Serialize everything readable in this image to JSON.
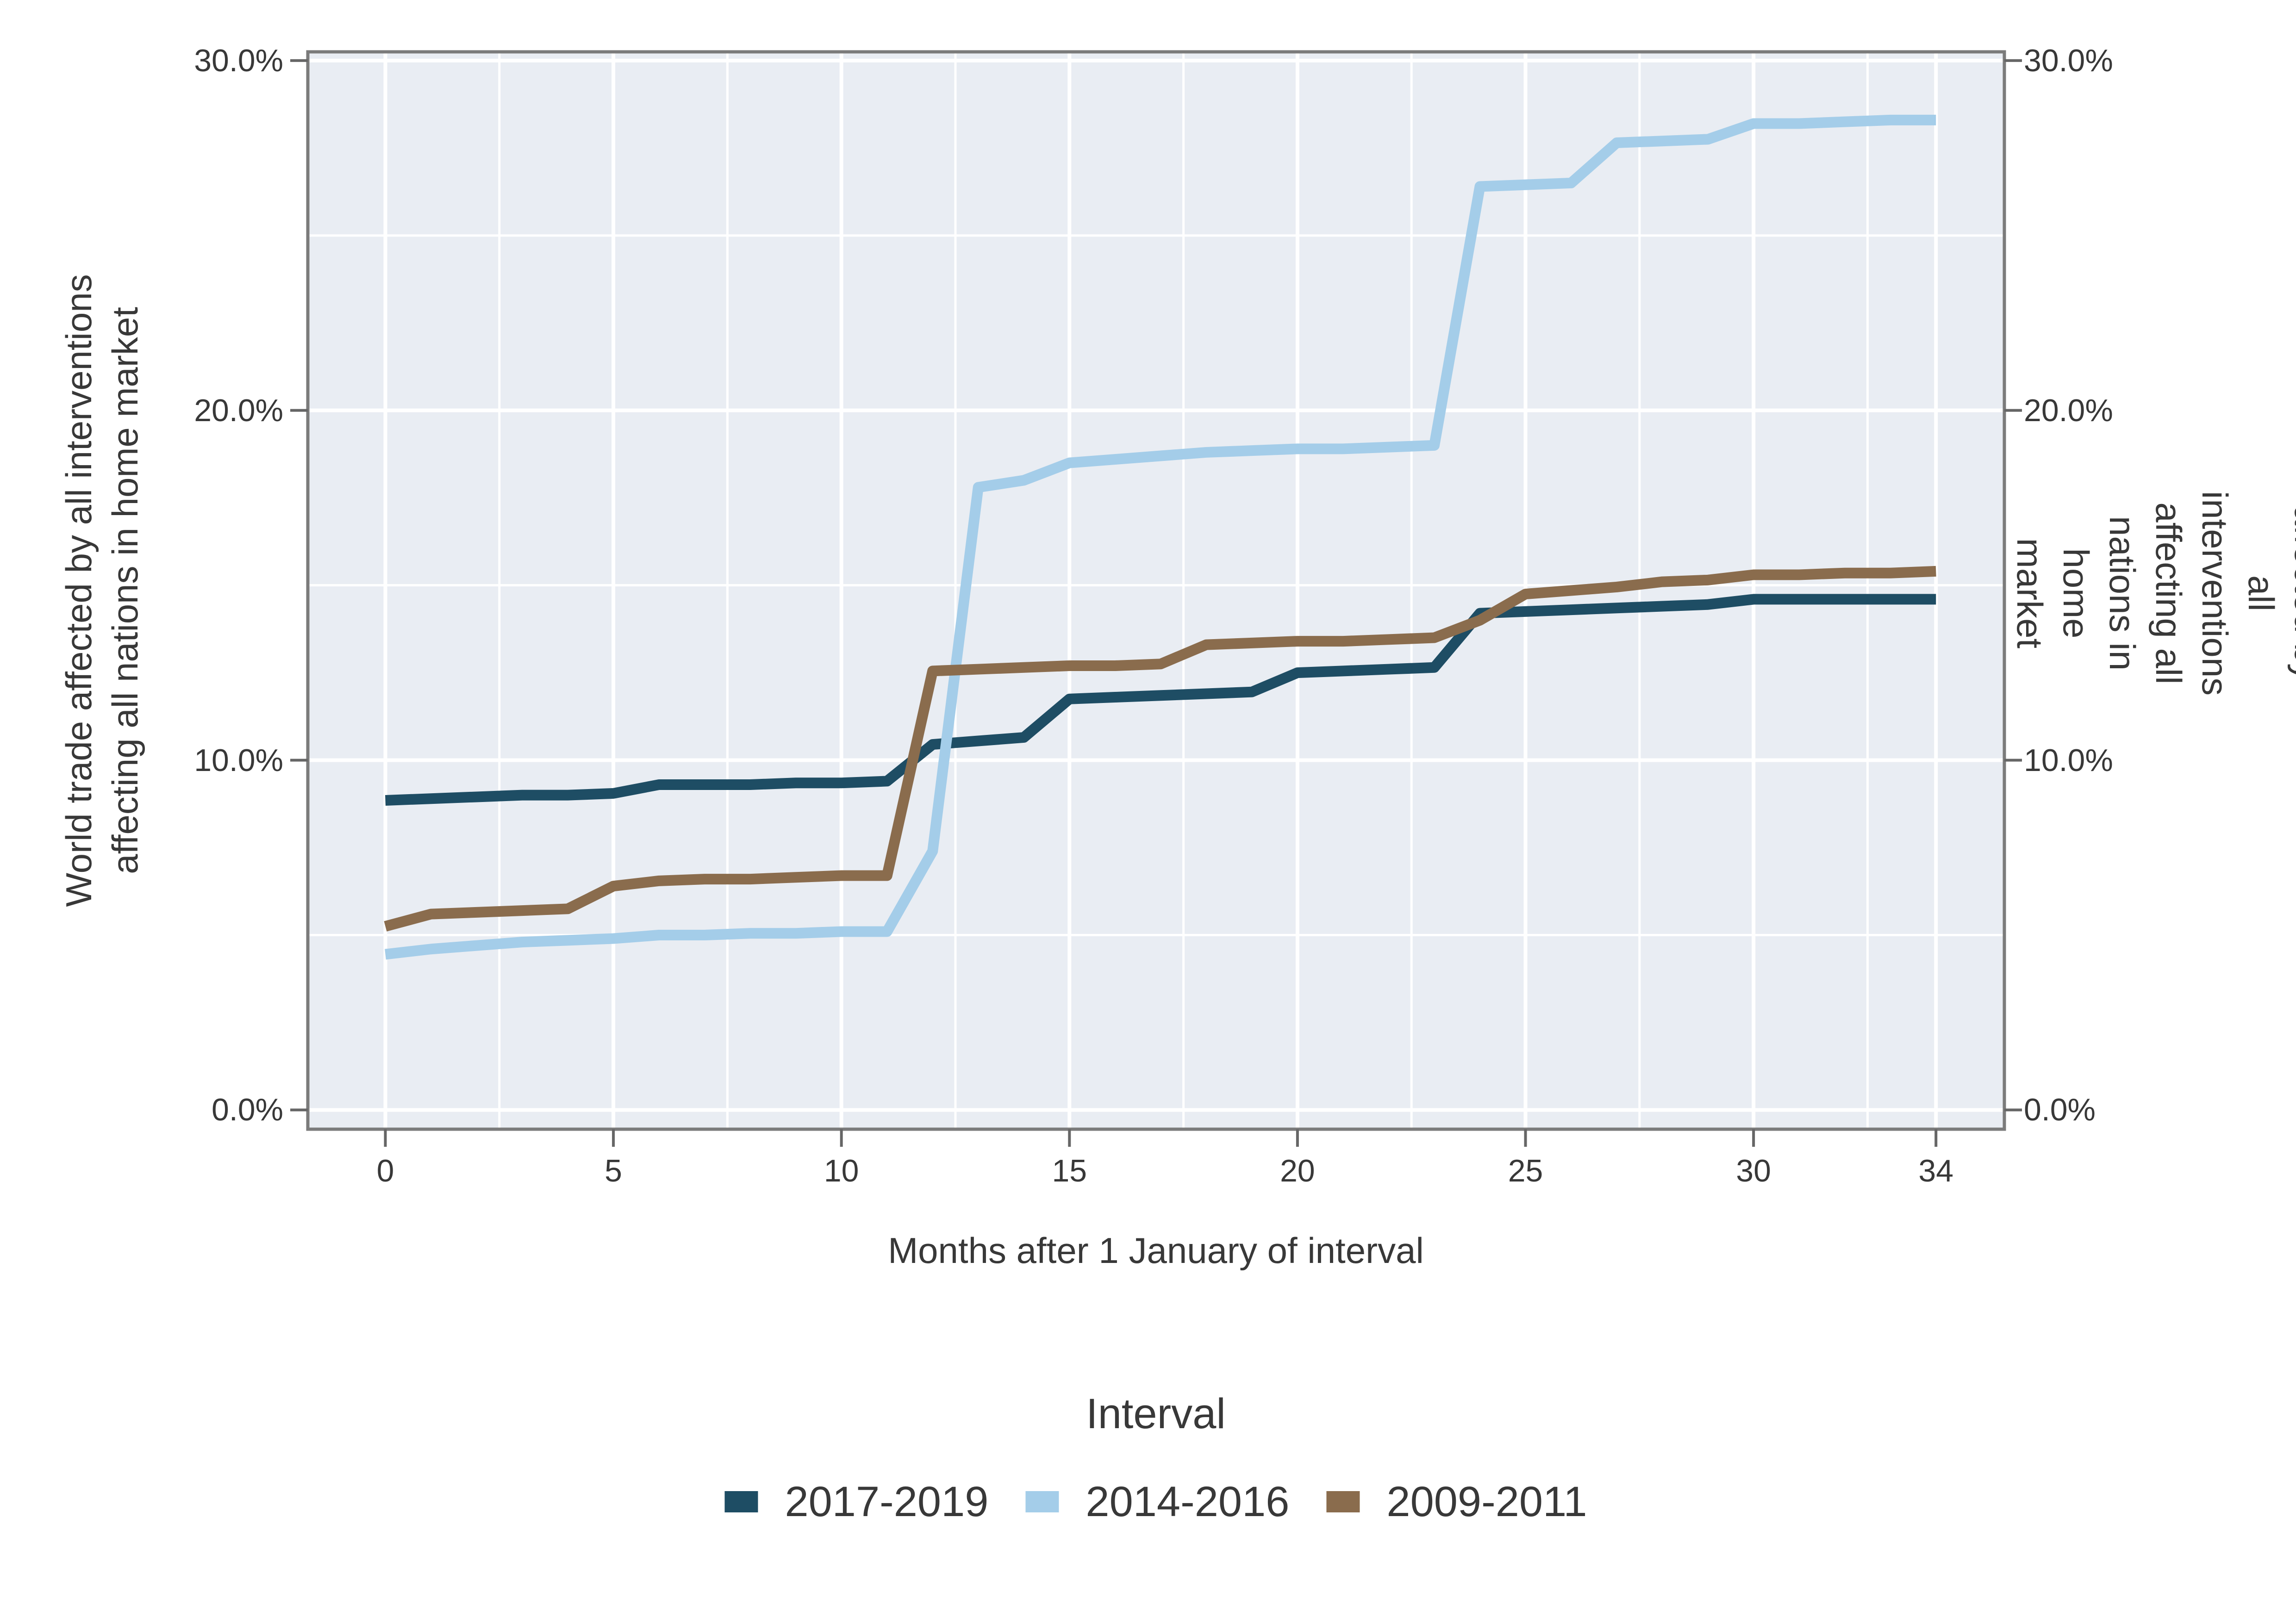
{
  "figure": {
    "x_axis_title": "Months after 1 January of interval",
    "y_axis_title": "World trade affected by all interventions\naffecting all nations in home market",
    "legend_title": "Interval"
  },
  "chart_data": {
    "type": "line",
    "title": "",
    "xlabel": "Months after 1 January of interval",
    "ylabel": "World trade affected by all interventions affecting all nations in home market",
    "legend_title": "Interval",
    "legend_position": "bottom",
    "grid": "white gridlines on light blue-gray panel",
    "panel_background": "#e9edf3",
    "gridline_color": "#ffffff",
    "panel_border_color": "#7b7b7b",
    "tick_color": "#666666",
    "text_color": "#383838",
    "xlim": [
      -1.7,
      35.5
    ],
    "ylim": [
      -0.55,
      30.25
    ],
    "x_ticks": [
      0,
      5,
      10,
      15,
      20,
      25,
      30,
      34
    ],
    "x_tick_labels": [
      "0",
      "5",
      "10",
      "15",
      "20",
      "25",
      "30",
      "34"
    ],
    "x_minor_gridlines": [
      2.5,
      7.5,
      12.5,
      17.5,
      22.5,
      27.5,
      32.5
    ],
    "y_ticks": [
      0,
      10,
      20,
      30
    ],
    "y_tick_labels": [
      "0.0%",
      "10.0%",
      "20.0%",
      "30.0%"
    ],
    "y_minor_gridlines": [
      5,
      15,
      25
    ],
    "x": [
      0,
      1,
      2,
      3,
      4,
      5,
      6,
      7,
      8,
      9,
      10,
      11,
      12,
      13,
      14,
      15,
      16,
      17,
      18,
      19,
      20,
      21,
      22,
      23,
      24,
      25,
      26,
      27,
      28,
      29,
      30,
      31,
      32,
      33,
      34
    ],
    "series": [
      {
        "name": "2017-2019",
        "color": "#1e4d64",
        "values": [
          8.85,
          8.9,
          8.95,
          9.0,
          9.0,
          9.05,
          9.3,
          9.3,
          9.3,
          9.35,
          9.35,
          9.4,
          10.45,
          10.55,
          10.65,
          11.75,
          11.8,
          11.85,
          11.9,
          11.95,
          12.5,
          12.55,
          12.6,
          12.65,
          14.2,
          14.25,
          14.3,
          14.35,
          14.4,
          14.45,
          14.6,
          14.6,
          14.6,
          14.6,
          14.6
        ]
      },
      {
        "name": "2014-2016",
        "color": "#a4cde9",
        "values": [
          4.45,
          4.6,
          4.7,
          4.8,
          4.85,
          4.9,
          5.0,
          5.0,
          5.05,
          5.05,
          5.1,
          5.1,
          7.4,
          17.8,
          18.0,
          18.5,
          18.6,
          18.7,
          18.8,
          18.85,
          18.9,
          18.9,
          18.95,
          19.0,
          26.4,
          26.45,
          26.5,
          27.65,
          27.7,
          27.75,
          28.2,
          28.2,
          28.25,
          28.3,
          28.3
        ]
      },
      {
        "name": "2009-2011",
        "color": "#8a6c4d",
        "values": [
          5.25,
          5.6,
          5.65,
          5.7,
          5.75,
          6.4,
          6.55,
          6.6,
          6.6,
          6.65,
          6.7,
          6.7,
          12.55,
          12.6,
          12.65,
          12.7,
          12.7,
          12.75,
          13.3,
          13.35,
          13.4,
          13.4,
          13.45,
          13.5,
          14.0,
          14.75,
          14.85,
          14.95,
          15.1,
          15.15,
          15.3,
          15.3,
          15.35,
          15.35,
          15.4
        ]
      }
    ]
  }
}
